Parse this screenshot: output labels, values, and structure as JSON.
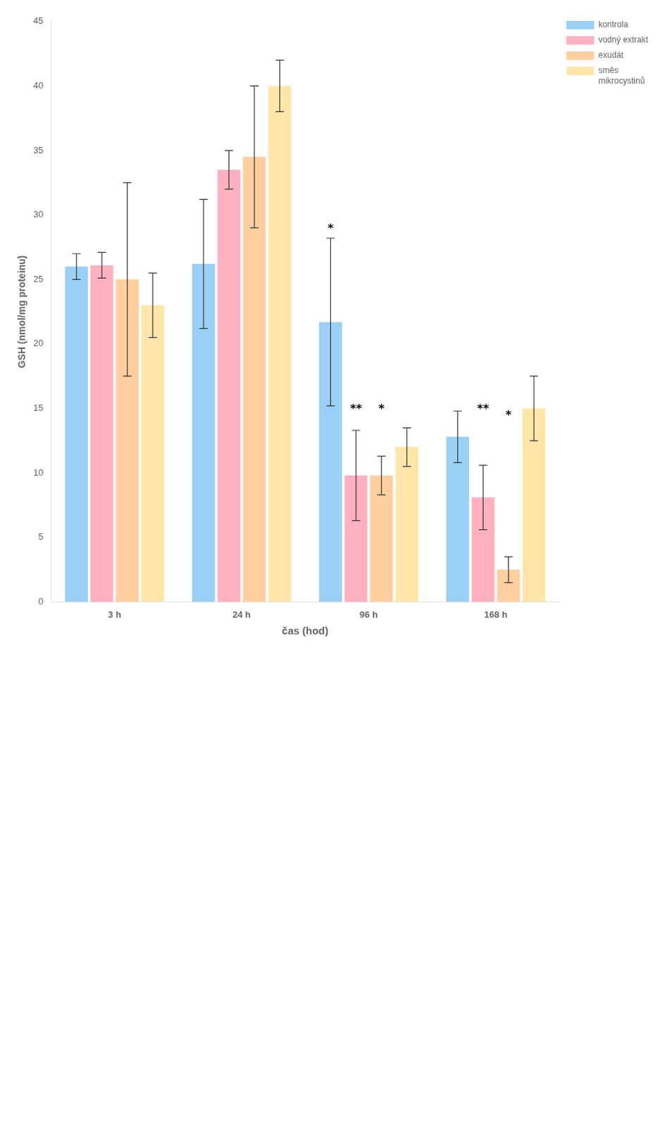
{
  "chart_data": {
    "type": "bar",
    "xlabel": "čas (hod)",
    "ylabel": "GSH (nmol/mg proteinu)",
    "categories": [
      "3 h",
      "24 h",
      "96 h",
      "168 h"
    ],
    "series": [
      {
        "name": "kontrola",
        "values": [
          26.0,
          26.2,
          21.7,
          12.8
        ],
        "errors": [
          1.0,
          5.0,
          6.5,
          2.0
        ]
      },
      {
        "name": "vodný extrakt",
        "values": [
          26.1,
          33.5,
          9.8,
          8.1
        ],
        "errors": [
          1.0,
          1.5,
          3.5,
          2.5
        ]
      },
      {
        "name": "exudát",
        "values": [
          25.0,
          34.5,
          9.8,
          2.5
        ],
        "errors": [
          7.5,
          5.5,
          1.5,
          1.0
        ]
      },
      {
        "name": "směs\nmikrocystinů",
        "values": [
          23.0,
          40.0,
          12.0,
          15.0
        ],
        "errors": [
          2.5,
          2.0,
          1.5,
          2.5
        ]
      }
    ],
    "ylim": [
      0,
      45
    ],
    "yticks": [
      0,
      5,
      10,
      15,
      20,
      25,
      30,
      35,
      40,
      45
    ],
    "grid": false,
    "legend": "right",
    "annotations": [
      {
        "text": "*",
        "category": "96 h",
        "series": "kontrola",
        "y": 28.5
      },
      {
        "text": "**",
        "category": "96 h",
        "series": "vodný extrakt",
        "y": 14.5
      },
      {
        "text": "*",
        "category": "96 h",
        "series": "exudát",
        "y": 14.5
      },
      {
        "text": "**",
        "category": "168 h",
        "series": "vodný extrakt",
        "y": 14.5
      },
      {
        "text": "*",
        "category": "168 h",
        "series": "exudát",
        "y": 14.0
      }
    ]
  }
}
